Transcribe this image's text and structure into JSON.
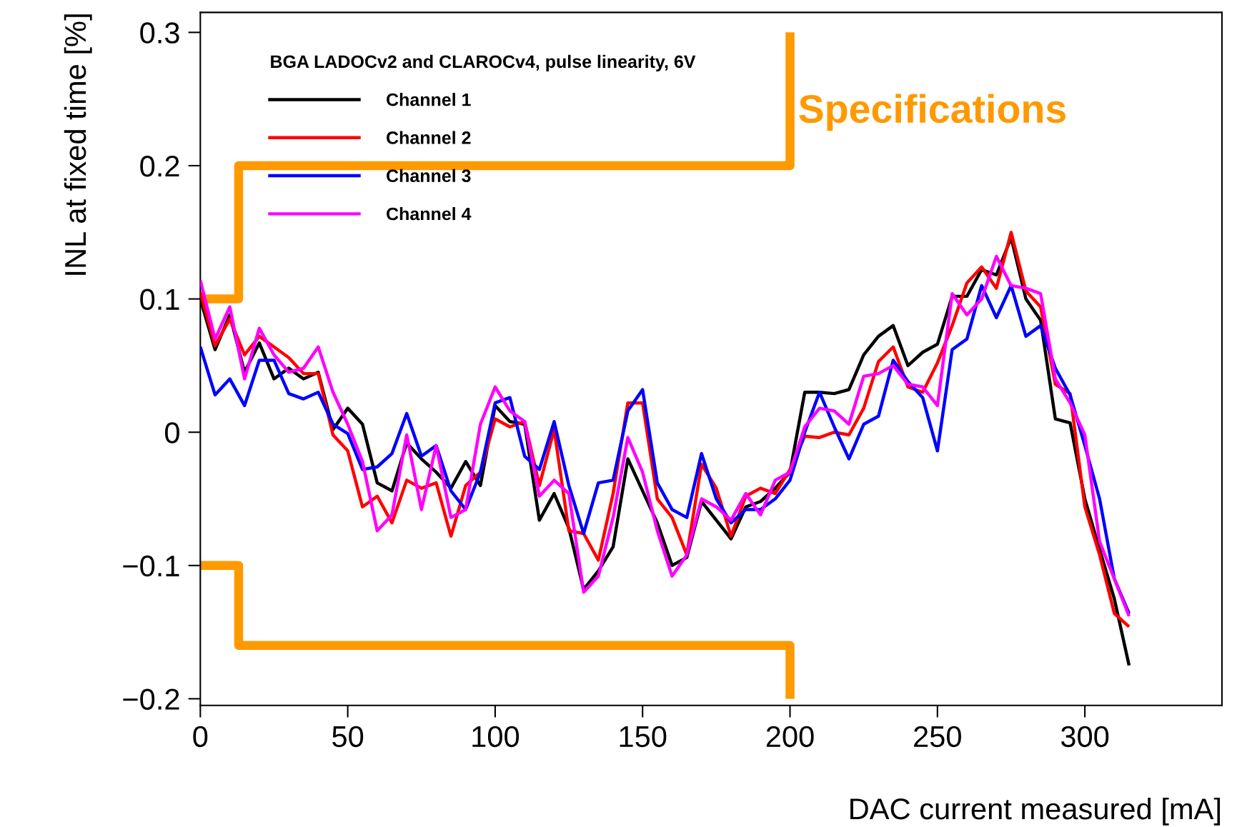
{
  "chart_data": {
    "type": "line",
    "xlabel": "DAC current measured [mA]",
    "ylabel": "INL at fixed time [%]",
    "legend_title": "BGA LADOCv2 and CLAROCv4, pulse linearity, 6V",
    "x": [
      0,
      5,
      10,
      15,
      20,
      25,
      30,
      35,
      40,
      45,
      50,
      55,
      60,
      65,
      70,
      75,
      80,
      85,
      90,
      95,
      100,
      105,
      110,
      115,
      120,
      125,
      130,
      135,
      140,
      145,
      150,
      155,
      160,
      165,
      170,
      175,
      180,
      185,
      190,
      195,
      200,
      205,
      210,
      215,
      220,
      225,
      230,
      235,
      240,
      245,
      250,
      255,
      260,
      265,
      270,
      275,
      280,
      285,
      290,
      295,
      300,
      305,
      310,
      315
    ],
    "series": [
      {
        "name": "Channel 1",
        "color": "#000000",
        "values": [
          0.1,
          0.062,
          0.088,
          0.045,
          0.067,
          0.04,
          0.048,
          0.04,
          0.045,
          0.002,
          0.018,
          0.006,
          -0.038,
          -0.044,
          -0.008,
          -0.02,
          -0.03,
          -0.042,
          -0.022,
          -0.04,
          0.02,
          0.008,
          0.006,
          -0.066,
          -0.046,
          -0.072,
          -0.118,
          -0.104,
          -0.086,
          -0.02,
          -0.044,
          -0.068,
          -0.1,
          -0.094,
          -0.052,
          -0.066,
          -0.08,
          -0.056,
          -0.052,
          -0.042,
          -0.03,
          0.03,
          0.03,
          0.029,
          0.032,
          0.058,
          0.072,
          0.08,
          0.05,
          0.06,
          0.066,
          0.102,
          0.102,
          0.122,
          0.118,
          0.146,
          0.1,
          0.084,
          0.01,
          0.007,
          -0.05,
          -0.088,
          -0.125,
          -0.175
        ]
      },
      {
        "name": "Channel 2",
        "color": "#ff0000",
        "values": [
          0.105,
          0.065,
          0.085,
          0.058,
          0.072,
          0.064,
          0.056,
          0.044,
          0.044,
          -0.002,
          -0.014,
          -0.056,
          -0.048,
          -0.068,
          -0.036,
          -0.042,
          -0.038,
          -0.078,
          -0.04,
          -0.03,
          0.01,
          0.004,
          0.008,
          -0.04,
          0.002,
          -0.074,
          -0.076,
          -0.096,
          -0.046,
          0.022,
          0.022,
          -0.05,
          -0.064,
          -0.092,
          -0.024,
          -0.042,
          -0.078,
          -0.048,
          -0.042,
          -0.046,
          -0.028,
          -0.003,
          -0.004,
          0.0,
          -0.002,
          0.018,
          0.053,
          0.064,
          0.034,
          0.03,
          0.052,
          0.08,
          0.112,
          0.124,
          0.108,
          0.15,
          0.106,
          0.094,
          0.036,
          0.029,
          -0.056,
          -0.092,
          -0.136,
          -0.146
        ]
      },
      {
        "name": "Channel 3",
        "color": "#0000ff",
        "values": [
          0.064,
          0.028,
          0.04,
          0.02,
          0.054,
          0.054,
          0.029,
          0.025,
          0.03,
          0.006,
          -0.001,
          -0.028,
          -0.026,
          -0.016,
          0.014,
          -0.018,
          -0.01,
          -0.044,
          -0.058,
          -0.03,
          0.022,
          0.026,
          -0.018,
          -0.028,
          0.008,
          -0.04,
          -0.076,
          -0.038,
          -0.036,
          0.016,
          0.032,
          -0.038,
          -0.058,
          -0.064,
          -0.016,
          -0.05,
          -0.068,
          -0.058,
          -0.058,
          -0.05,
          -0.036,
          0.0,
          0.03,
          0.004,
          -0.02,
          0.006,
          0.012,
          0.054,
          0.038,
          0.026,
          -0.014,
          0.062,
          0.07,
          0.11,
          0.086,
          0.11,
          0.072,
          0.08,
          0.048,
          0.028,
          -0.01,
          -0.05,
          -0.11,
          -0.136
        ]
      },
      {
        "name": "Channel 4",
        "color": "#ff00ff",
        "values": [
          0.114,
          0.07,
          0.094,
          0.04,
          0.078,
          0.058,
          0.045,
          0.048,
          0.064,
          0.03,
          0.006,
          -0.022,
          -0.074,
          -0.062,
          -0.002,
          -0.058,
          -0.01,
          -0.064,
          -0.058,
          0.006,
          0.034,
          0.016,
          0.008,
          -0.048,
          -0.036,
          -0.046,
          -0.12,
          -0.108,
          -0.064,
          -0.004,
          -0.03,
          -0.074,
          -0.108,
          -0.092,
          -0.05,
          -0.056,
          -0.066,
          -0.046,
          -0.062,
          -0.036,
          -0.03,
          0.004,
          0.018,
          0.016,
          0.006,
          0.042,
          0.044,
          0.05,
          0.036,
          0.034,
          0.02,
          0.104,
          0.088,
          0.1,
          0.132,
          0.11,
          0.108,
          0.104,
          0.04,
          0.022,
          -0.002,
          -0.082,
          -0.11,
          -0.138
        ]
      },
      {
        "name": "Specifications",
        "color": "#ff9900",
        "x": [
          0,
          13,
          13,
          200,
          200
        ],
        "values": [
          0.1,
          0.1,
          0.2,
          0.2,
          0.3
        ]
      },
      {
        "color": "#ff9900",
        "x": [
          0,
          13,
          13,
          200,
          200
        ],
        "values": [
          -0.1,
          -0.1,
          -0.16,
          -0.16,
          -0.2
        ]
      }
    ],
    "xlim": [
      0,
      346.5
    ],
    "ylim": [
      -0.205,
      0.315
    ],
    "xticks": [
      0,
      50,
      100,
      150,
      200,
      250,
      300
    ],
    "yticks": [
      {
        "value": -0.2,
        "label": "−0.2"
      },
      {
        "value": -0.1,
        "label": "−0.1"
      },
      0,
      0.1,
      0.2,
      0.3
    ],
    "grid": false,
    "legend": "top left",
    "marker": "none",
    "line_style": "solid"
  }
}
